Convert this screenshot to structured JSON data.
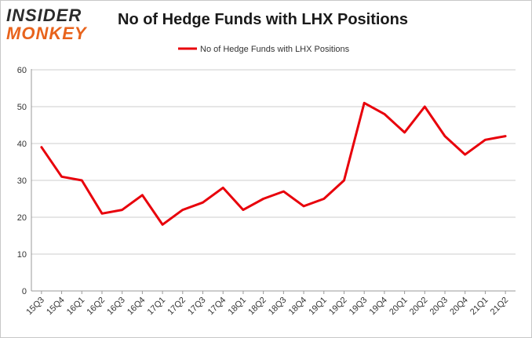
{
  "logo": {
    "line1": "INSIDER",
    "line2": "MONKEY"
  },
  "chart_data": {
    "type": "line",
    "title": "No of Hedge Funds with LHX Positions",
    "categories": [
      "15Q3",
      "15Q4",
      "16Q1",
      "16Q2",
      "16Q3",
      "16Q4",
      "17Q1",
      "17Q2",
      "17Q3",
      "17Q4",
      "18Q1",
      "18Q2",
      "18Q3",
      "18Q4",
      "19Q1",
      "19Q2",
      "19Q3",
      "19Q4",
      "20Q1",
      "20Q2",
      "20Q3",
      "20Q4",
      "21Q1",
      "21Q2"
    ],
    "series": [
      {
        "name": "No of Hedge Funds with LHX Positions",
        "values": [
          39,
          31,
          30,
          21,
          22,
          26,
          18,
          22,
          24,
          28,
          22,
          25,
          27,
          23,
          25,
          30,
          51,
          48,
          43,
          50,
          42,
          37,
          41,
          42
        ]
      }
    ],
    "yticks": [
      0,
      10,
      20,
      30,
      40,
      50,
      60
    ],
    "ylim": [
      0,
      60
    ],
    "xlabel": "",
    "ylabel": "",
    "grid": true,
    "legend": "top-center",
    "colors": {
      "line": "#e8000b",
      "grid": "#cccccc",
      "axis": "#999999"
    }
  }
}
